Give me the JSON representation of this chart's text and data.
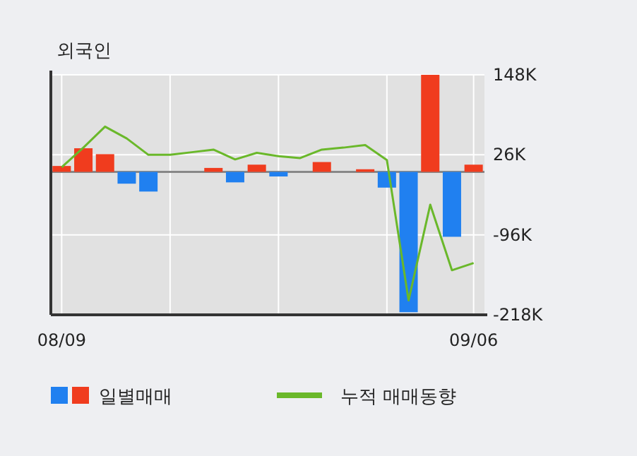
{
  "chart_data": {
    "type": "bar",
    "title": "외국인",
    "categories": [
      "08/09",
      null,
      null,
      null,
      null,
      null,
      null,
      null,
      null,
      null,
      null,
      null,
      null,
      null,
      null,
      null,
      null,
      null,
      null,
      "09/06"
    ],
    "series": [
      {
        "name": "일별매매",
        "values": [
          9,
          36,
          27,
          -18,
          -30,
          0,
          0,
          6,
          -16,
          11,
          -7,
          0,
          15,
          0,
          4,
          -24,
          -214,
          148,
          -99,
          11
        ],
        "colors": [
          "#f03c1e",
          "#f03c1e",
          "#f03c1e",
          "#2080f0",
          "#2080f0",
          "#f03c1e",
          "#f03c1e",
          "#f03c1e",
          "#2080f0",
          "#f03c1e",
          "#2080f0",
          "#f03c1e",
          "#f03c1e",
          "#f03c1e",
          "#f03c1e",
          "#2080f0",
          "#2080f0",
          "#f03c1e",
          "#2080f0",
          "#f03c1e"
        ]
      },
      {
        "name": "누적 매매동향",
        "type": "line",
        "color": "#6ab82a",
        "values": [
          7,
          37,
          69,
          51,
          26,
          26,
          30,
          34,
          19,
          29,
          24,
          21,
          34,
          37,
          41,
          18,
          -196,
          -50,
          -150,
          -139
        ]
      }
    ],
    "ylim": [
      -218,
      148
    ],
    "yticks": [
      {
        "value": 148,
        "label": "148K"
      },
      {
        "value": 26,
        "label": "26K"
      },
      {
        "value": -96,
        "label": "-96K"
      },
      {
        "value": -218,
        "label": "-218K"
      }
    ],
    "grid": true,
    "legend": "bottom"
  }
}
